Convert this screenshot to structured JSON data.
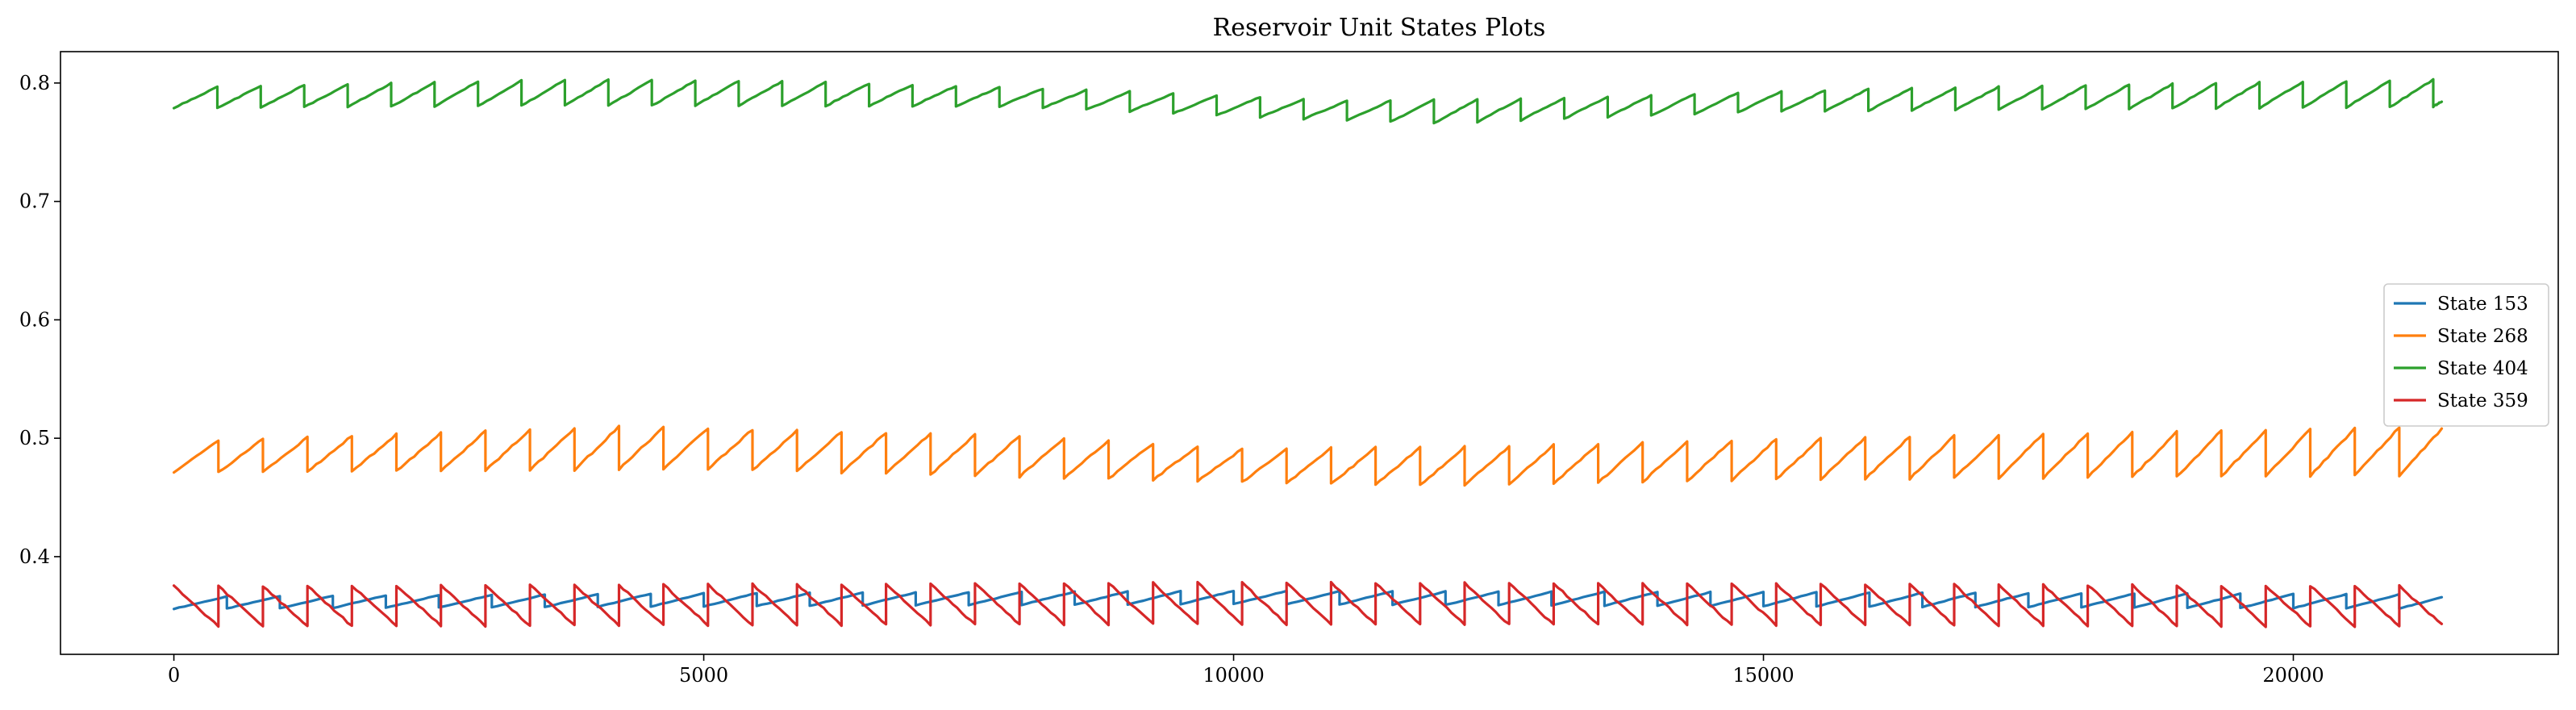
{
  "chart_data": {
    "type": "line",
    "title": "Reservoir Unit States Plots",
    "xlabel": "",
    "ylabel": "",
    "xlim": [
      -1070,
      22500
    ],
    "ylim": [
      0.3175,
      0.8265
    ],
    "xticks": [
      0,
      5000,
      10000,
      15000,
      20000
    ],
    "xtick_labels": [
      "0",
      "5000",
      "10000",
      "15000",
      "20000"
    ],
    "yticks": [
      0.4,
      0.5,
      0.6,
      0.7,
      0.8
    ],
    "ytick_labels": [
      "0.4",
      "0.5",
      "0.6",
      "0.7",
      "0.8"
    ],
    "grid": false,
    "legend_position": "right",
    "x_max": 21400,
    "series": [
      {
        "name": "State 153",
        "color": "#1f77b4",
        "shape": "sawtooth-up",
        "period": 500,
        "low_points": [
          [
            0,
            0.356
          ],
          [
            5000,
            0.358
          ],
          [
            10000,
            0.36
          ],
          [
            15000,
            0.358
          ],
          [
            21400,
            0.356
          ]
        ],
        "high_points": [
          [
            0,
            0.366
          ],
          [
            5000,
            0.369
          ],
          [
            10000,
            0.371
          ],
          [
            15000,
            0.37
          ],
          [
            21400,
            0.368
          ]
        ]
      },
      {
        "name": "State 268",
        "color": "#ff7f0e",
        "shape": "sawtooth-up",
        "period": 420,
        "low_points": [
          [
            0,
            0.471
          ],
          [
            5000,
            0.474
          ],
          [
            10000,
            0.463
          ],
          [
            12000,
            0.46
          ],
          [
            15000,
            0.465
          ],
          [
            21400,
            0.469
          ]
        ],
        "high_points": [
          [
            0,
            0.497
          ],
          [
            4200,
            0.51
          ],
          [
            8000,
            0.502
          ],
          [
            10000,
            0.491
          ],
          [
            12500,
            0.493
          ],
          [
            15000,
            0.499
          ],
          [
            21400,
            0.51
          ]
        ]
      },
      {
        "name": "State 404",
        "color": "#2ca02c",
        "shape": "sawtooth-up",
        "period": 410,
        "low_points": [
          [
            0,
            0.779
          ],
          [
            3700,
            0.781
          ],
          [
            8000,
            0.78
          ],
          [
            10500,
            0.77
          ],
          [
            12000,
            0.766
          ],
          [
            15000,
            0.776
          ],
          [
            21400,
            0.78
          ]
        ],
        "high_points": [
          [
            0,
            0.796
          ],
          [
            3800,
            0.803
          ],
          [
            6000,
            0.801
          ],
          [
            9000,
            0.793
          ],
          [
            11000,
            0.785
          ],
          [
            13000,
            0.787
          ],
          [
            16000,
            0.795
          ],
          [
            21400,
            0.803
          ]
        ]
      },
      {
        "name": "State 359",
        "color": "#d62728",
        "shape": "sawtooth-down",
        "period": 420,
        "low_points": [
          [
            0,
            0.341
          ],
          [
            10000,
            0.343
          ],
          [
            21400,
            0.341
          ]
        ],
        "high_points": [
          [
            0,
            0.375
          ],
          [
            10000,
            0.378
          ],
          [
            12000,
            0.378
          ],
          [
            21400,
            0.375
          ]
        ]
      }
    ]
  }
}
